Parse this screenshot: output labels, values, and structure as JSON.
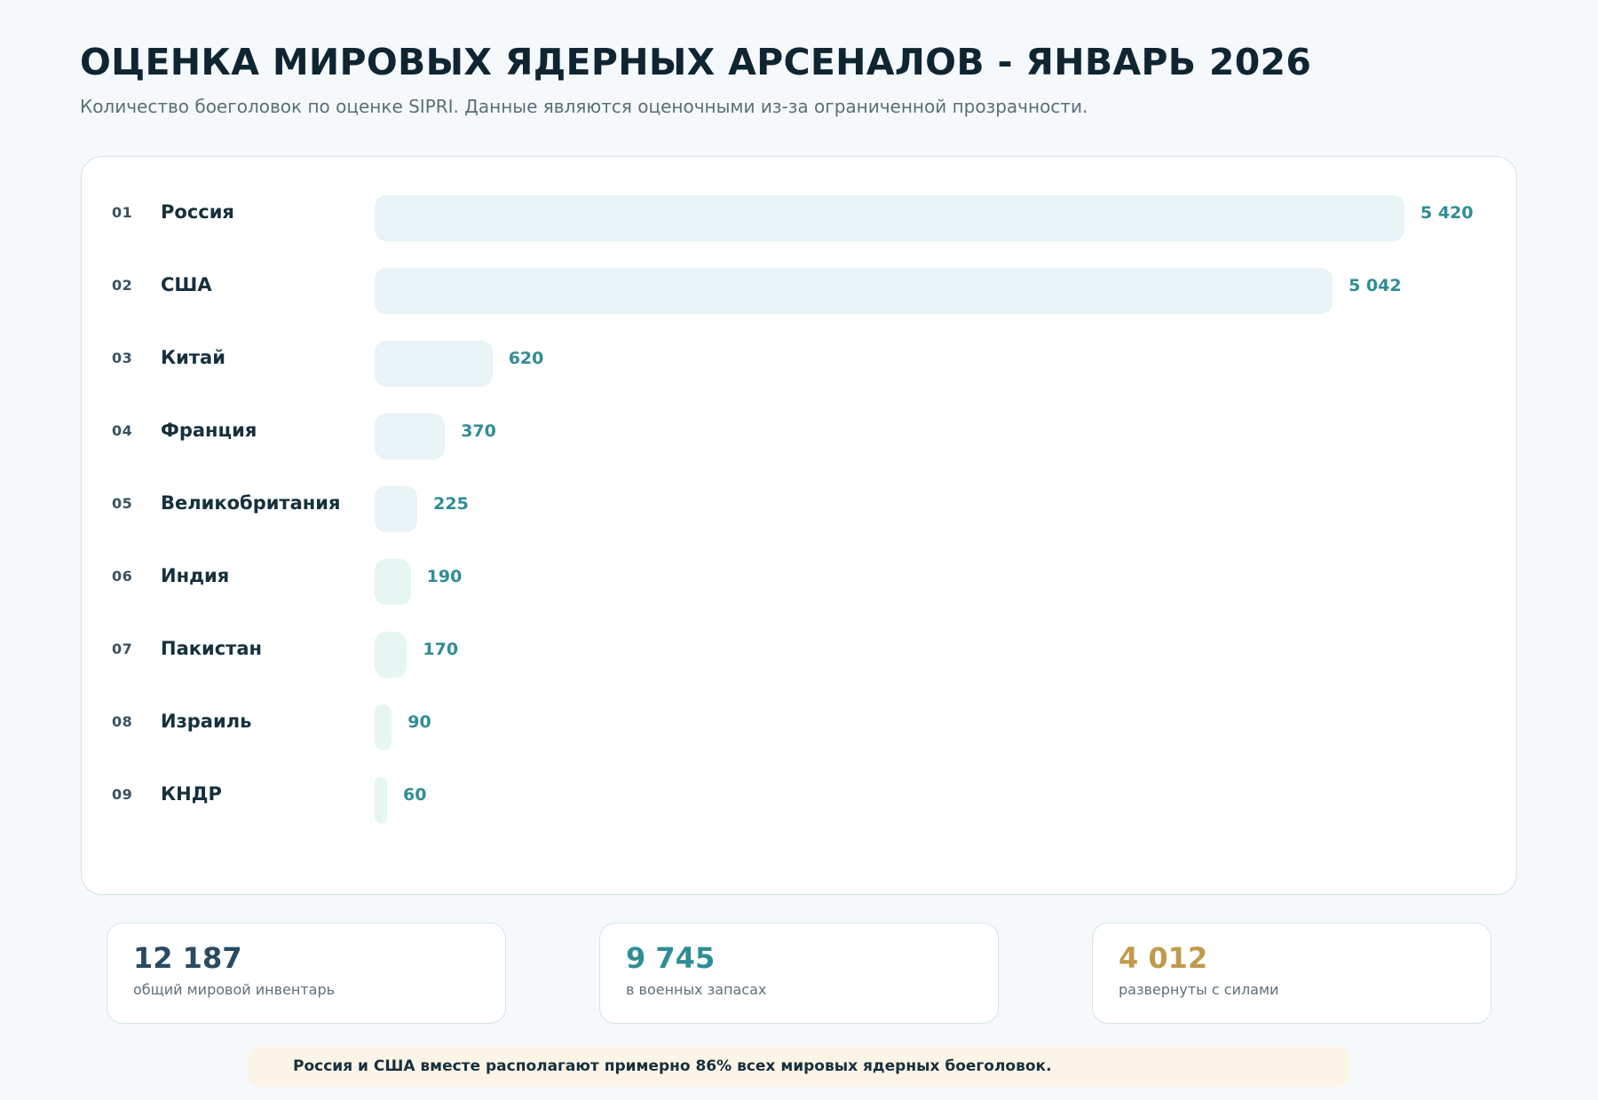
{
  "header": {
    "title": "ОЦЕНКА МИРОВЫХ ЯДЕРНЫХ АРСЕНАЛОВ - ЯНВАРЬ 2026",
    "subtitle": "Количество боеголовок по оценке SIPRI. Данные являются оценочными из-за ограниченной прозрачности."
  },
  "chart_data": {
    "type": "bar",
    "orientation": "horizontal",
    "title": "ОЦЕНКА МИРОВЫХ ЯДЕРНЫХ АРСЕНАЛОВ - ЯНВАРЬ 2026",
    "ranks": [
      "01",
      "02",
      "03",
      "04",
      "05",
      "06",
      "07",
      "08",
      "09"
    ],
    "categories": [
      "Россия",
      "США",
      "Китай",
      "Франция",
      "Великобритания",
      "Индия",
      "Пакистан",
      "Израиль",
      "КНДР"
    ],
    "values": [
      5420,
      5042,
      620,
      370,
      225,
      190,
      170,
      90,
      60
    ],
    "value_labels": [
      "5 420",
      "5 042",
      "620",
      "370",
      "225",
      "190",
      "170",
      "90",
      "60"
    ],
    "xlim": [
      0,
      5420
    ],
    "grid": false,
    "legend": "none",
    "colors": {
      "bar_major": "#e8f4f6",
      "bar_minor": "#e6f6f2",
      "value_text": "#2f8d96"
    }
  },
  "stats": [
    {
      "value": "12 187",
      "label": "общий мировой инвентарь",
      "color": "#2b4a62"
    },
    {
      "value": "9 745",
      "label": "в военных запасах",
      "color": "#2f8d96"
    },
    {
      "value": "4 012",
      "label": "развернуты с силами",
      "color": "#c09a4c"
    }
  ],
  "note": {
    "text": "Россия и США вместе располагают примерно 86% всех мировых ядерных боеголовок."
  }
}
